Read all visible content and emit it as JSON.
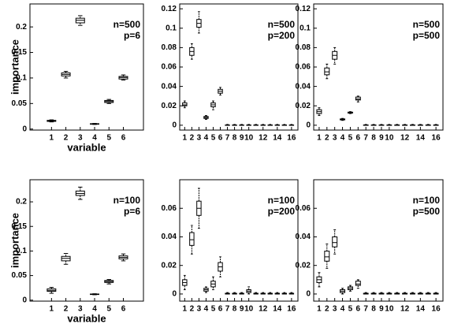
{
  "chart_data": [
    {
      "type": "box",
      "annotation": [
        "n=500",
        "p=6"
      ],
      "ylabel": "importance",
      "xlabel": "variable",
      "x": [
        1,
        2,
        3,
        4,
        5,
        6
      ],
      "xlim": [
        -0.5,
        7.4
      ],
      "xticks": [
        1,
        2,
        3,
        4,
        5,
        6
      ],
      "ylim": [
        -0.002,
        0.245
      ],
      "yticks": [
        0,
        0.05,
        0.1,
        0.15,
        0.2
      ],
      "low": [
        0.014,
        0.1,
        0.203,
        0.009,
        0.05,
        0.096
      ],
      "q1": [
        0.015,
        0.104,
        0.208,
        0.0095,
        0.052,
        0.098
      ],
      "median": [
        0.016,
        0.107,
        0.213,
        0.01,
        0.054,
        0.101
      ],
      "q3": [
        0.017,
        0.11,
        0.217,
        0.0105,
        0.056,
        0.103
      ],
      "high": [
        0.018,
        0.113,
        0.222,
        0.011,
        0.058,
        0.106
      ]
    },
    {
      "type": "box",
      "annotation": [
        "n=500",
        "p=200"
      ],
      "x": [
        1,
        2,
        3,
        4,
        5,
        6,
        7,
        8,
        9,
        10,
        11,
        12,
        13,
        14,
        15,
        16
      ],
      "xlim": [
        0.3,
        16.9
      ],
      "xticks": [
        1,
        2,
        3,
        4,
        5,
        6,
        7,
        8,
        9,
        10,
        12,
        14,
        16
      ],
      "ylim": [
        -0.005,
        0.125
      ],
      "yticks": [
        0,
        0.02,
        0.04,
        0.06,
        0.08,
        0.1,
        0.12
      ],
      "low": [
        0.018,
        0.068,
        0.095,
        0.006,
        0.016,
        0.031,
        0,
        0,
        0,
        0,
        0,
        0,
        0,
        0,
        0,
        0
      ],
      "q1": [
        0.02,
        0.072,
        0.101,
        0.007,
        0.019,
        0.033,
        0,
        0,
        0,
        0,
        0,
        0,
        0,
        0,
        0,
        0
      ],
      "median": [
        0.021,
        0.076,
        0.105,
        0.008,
        0.021,
        0.035,
        0,
        0,
        0,
        0,
        0,
        0,
        0,
        0,
        0,
        0
      ],
      "q3": [
        0.023,
        0.08,
        0.109,
        0.009,
        0.023,
        0.037,
        0.0003,
        0.0003,
        0.0003,
        0.0003,
        0.0003,
        0.0003,
        0.0003,
        0.0003,
        0.0003,
        0.0003
      ],
      "high": [
        0.025,
        0.084,
        0.117,
        0.01,
        0.025,
        0.039,
        0.0008,
        0.0008,
        0.0008,
        0.0008,
        0.0008,
        0.0008,
        0.0008,
        0.0008,
        0.0008,
        0.0008
      ]
    },
    {
      "type": "box",
      "annotation": [
        "n=500",
        "p=500"
      ],
      "x": [
        1,
        2,
        3,
        4,
        5,
        6,
        7,
        8,
        9,
        10,
        11,
        12,
        13,
        14,
        15,
        16
      ],
      "xlim": [
        0.3,
        16.9
      ],
      "xticks": [
        1,
        2,
        3,
        4,
        5,
        6,
        7,
        8,
        9,
        10,
        12,
        14,
        16
      ],
      "ylim": [
        -0.005,
        0.125
      ],
      "yticks": [
        0,
        0.02,
        0.04,
        0.06,
        0.08,
        0.1,
        0.12
      ],
      "low": [
        0.01,
        0.048,
        0.063,
        0.005,
        0.012,
        0.024,
        0,
        0,
        0,
        0,
        0,
        0,
        0,
        0,
        0,
        0
      ],
      "q1": [
        0.012,
        0.052,
        0.068,
        0.0055,
        0.0125,
        0.026,
        0,
        0,
        0,
        0,
        0,
        0,
        0,
        0,
        0,
        0
      ],
      "median": [
        0.014,
        0.055,
        0.072,
        0.006,
        0.013,
        0.027,
        0,
        0,
        0,
        0,
        0,
        0,
        0,
        0,
        0,
        0
      ],
      "q3": [
        0.016,
        0.059,
        0.076,
        0.0065,
        0.0135,
        0.029,
        0.0003,
        0.0003,
        0.0003,
        0.0003,
        0.0003,
        0.0003,
        0.0003,
        0.0003,
        0.0003,
        0.0003
      ],
      "high": [
        0.018,
        0.063,
        0.08,
        0.007,
        0.014,
        0.03,
        0.0008,
        0.0008,
        0.0008,
        0.0008,
        0.0008,
        0.0008,
        0.0008,
        0.0008,
        0.0008,
        0.0008
      ]
    },
    {
      "type": "box",
      "annotation": [
        "n=100",
        "p=6"
      ],
      "ylabel": "importance",
      "xlabel": "variable",
      "x": [
        1,
        2,
        3,
        4,
        5,
        6
      ],
      "xlim": [
        -0.5,
        7.4
      ],
      "xticks": [
        1,
        2,
        3,
        4,
        5,
        6
      ],
      "ylim": [
        -0.002,
        0.245
      ],
      "yticks": [
        0,
        0.05,
        0.1,
        0.15,
        0.2
      ],
      "low": [
        0.014,
        0.073,
        0.205,
        0.011,
        0.033,
        0.08
      ],
      "q1": [
        0.018,
        0.08,
        0.213,
        0.0115,
        0.036,
        0.084
      ],
      "median": [
        0.02,
        0.085,
        0.217,
        0.012,
        0.038,
        0.087
      ],
      "q3": [
        0.023,
        0.089,
        0.222,
        0.0125,
        0.04,
        0.09
      ],
      "high": [
        0.026,
        0.095,
        0.23,
        0.013,
        0.042,
        0.094
      ]
    },
    {
      "type": "box",
      "annotation": [
        "n=100",
        "p=200"
      ],
      "x": [
        1,
        2,
        3,
        4,
        5,
        6,
        7,
        8,
        9,
        10,
        11,
        12,
        13,
        14,
        15,
        16
      ],
      "xlim": [
        0.3,
        16.9
      ],
      "xticks": [
        1,
        2,
        3,
        4,
        5,
        6,
        7,
        8,
        9,
        10,
        12,
        14,
        16
      ],
      "ylim": [
        -0.005,
        0.08
      ],
      "yticks": [
        0,
        0.02,
        0.04,
        0.06
      ],
      "low": [
        0.003,
        0.028,
        0.046,
        0.001,
        0.003,
        0.012,
        0,
        0,
        0,
        0,
        0,
        0,
        0,
        0,
        0,
        0
      ],
      "q1": [
        0.006,
        0.034,
        0.055,
        0.002,
        0.005,
        0.016,
        0,
        0,
        0,
        0.001,
        0,
        0,
        0,
        0,
        0,
        0
      ],
      "median": [
        0.008,
        0.038,
        0.06,
        0.003,
        0.007,
        0.019,
        0,
        0,
        0,
        0.002,
        0,
        0,
        0,
        0,
        0,
        0
      ],
      "q3": [
        0.01,
        0.043,
        0.065,
        0.004,
        0.009,
        0.022,
        0.0005,
        0.0005,
        0.0005,
        0.003,
        0.0005,
        0.0005,
        0.0005,
        0.0005,
        0.0005,
        0.0005
      ],
      "high": [
        0.013,
        0.048,
        0.074,
        0.005,
        0.012,
        0.026,
        0.001,
        0.001,
        0.001,
        0.005,
        0.001,
        0.001,
        0.001,
        0.001,
        0.001,
        0.001
      ]
    },
    {
      "type": "box",
      "annotation": [
        "n=100",
        "p=500"
      ],
      "x": [
        1,
        2,
        3,
        4,
        5,
        6,
        7,
        8,
        9,
        10,
        11,
        12,
        13,
        14,
        15,
        16
      ],
      "xlim": [
        0.3,
        16.9
      ],
      "xticks": [
        1,
        2,
        3,
        4,
        5,
        6,
        7,
        8,
        9,
        10,
        12,
        14,
        16
      ],
      "ylim": [
        -0.005,
        0.08
      ],
      "yticks": [
        0,
        0.02,
        0.04,
        0.06
      ],
      "low": [
        0.005,
        0.018,
        0.028,
        0,
        0.002,
        0.004,
        0,
        0,
        0,
        0,
        0,
        0,
        0,
        0,
        0,
        0
      ],
      "q1": [
        0.008,
        0.023,
        0.033,
        0.001,
        0.003,
        0.006,
        0,
        0,
        0,
        0,
        0,
        0,
        0,
        0,
        0,
        0
      ],
      "median": [
        0.01,
        0.026,
        0.036,
        0.002,
        0.004,
        0.007,
        0,
        0,
        0,
        0,
        0,
        0,
        0,
        0,
        0,
        0
      ],
      "q3": [
        0.012,
        0.03,
        0.04,
        0.003,
        0.005,
        0.009,
        0.0005,
        0.0005,
        0.0005,
        0.0005,
        0.0005,
        0.0005,
        0.0005,
        0.0005,
        0.0005,
        0.0005
      ],
      "high": [
        0.015,
        0.035,
        0.045,
        0.004,
        0.006,
        0.01,
        0.001,
        0.001,
        0.001,
        0.001,
        0.001,
        0.001,
        0.001,
        0.001,
        0.001,
        0.001
      ]
    }
  ]
}
